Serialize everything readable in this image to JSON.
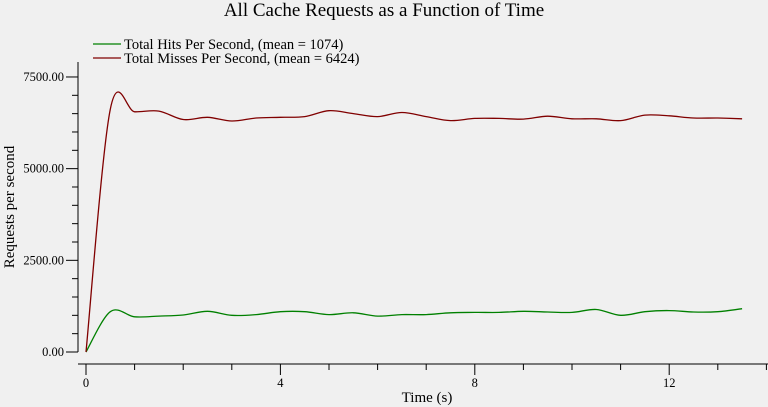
{
  "chart_data": {
    "type": "line",
    "title": "All Cache Requests as a Function of Time",
    "xlabel": "Time (s)",
    "ylabel": "Requests per second",
    "xlim": [
      0,
      14
    ],
    "ylim": [
      0,
      8000
    ],
    "x_ticks": [
      0,
      4,
      8,
      12
    ],
    "x_tick_labels": [
      "0",
      "4",
      "8",
      "12"
    ],
    "x_minor_step": 1,
    "y_ticks": [
      0,
      2500,
      5000,
      7500
    ],
    "y_tick_labels": [
      "0.00",
      "2500.00",
      "5000.00",
      "7500.00"
    ],
    "y_minor_step": 500,
    "grid": false,
    "legend": "top-left",
    "x": [
      0,
      0.5,
      1,
      1.5,
      2,
      2.5,
      3,
      3.5,
      4,
      4.5,
      5,
      5.5,
      6,
      6.5,
      7,
      7.5,
      8,
      8.5,
      9,
      9.5,
      10,
      10.5,
      11,
      11.5,
      12,
      12.5,
      13,
      13.5
    ],
    "series": [
      {
        "name": "Total Hits Per Second, (mean = 1074)",
        "color": "#008000",
        "values": [
          0,
          1100,
          960,
          980,
          1010,
          1110,
          1000,
          1020,
          1100,
          1100,
          1020,
          1070,
          980,
          1020,
          1020,
          1070,
          1080,
          1080,
          1110,
          1090,
          1080,
          1160,
          1000,
          1100,
          1130,
          1090,
          1100,
          1180
        ]
      },
      {
        "name": "Total Misses Per Second, (mean = 6424)",
        "color": "#800000",
        "values": [
          0,
          6620,
          6550,
          6570,
          6340,
          6400,
          6300,
          6380,
          6400,
          6420,
          6580,
          6500,
          6420,
          6530,
          6420,
          6310,
          6370,
          6370,
          6350,
          6430,
          6360,
          6360,
          6310,
          6460,
          6440,
          6380,
          6380,
          6360
        ]
      }
    ]
  }
}
